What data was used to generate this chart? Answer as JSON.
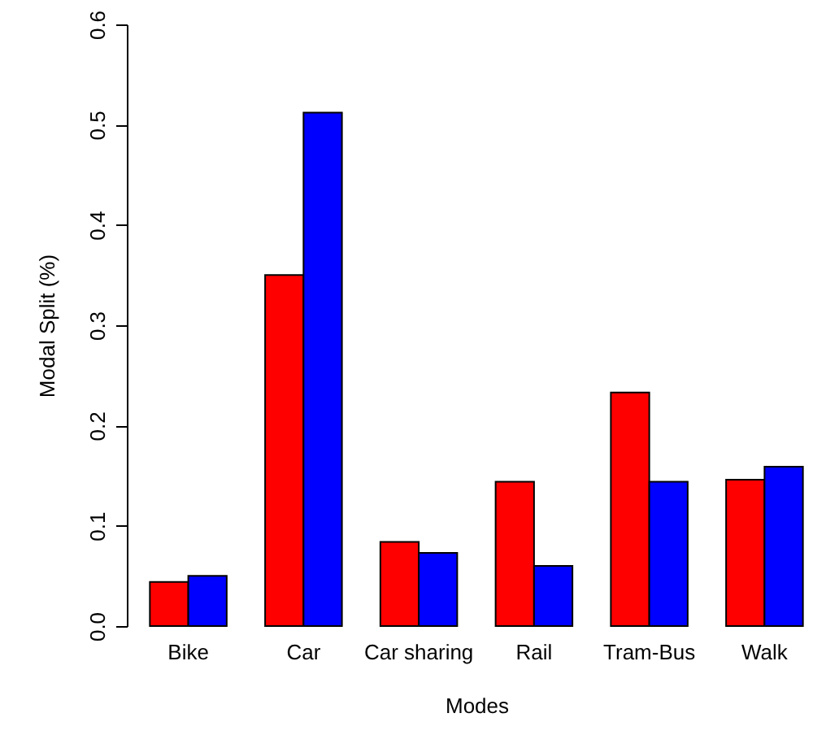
{
  "chart_data": {
    "type": "bar",
    "xlabel": "Modes",
    "ylabel": "Modal Split (%)",
    "categories": [
      "Bike",
      "Car",
      "Car sharing",
      "Rail",
      "Tram-Bus",
      "Walk"
    ],
    "series": [
      {
        "color": "#ff0000",
        "values": [
          0.044,
          0.35,
          0.084,
          0.144,
          0.233,
          0.146
        ]
      },
      {
        "color": "#0000ff",
        "values": [
          0.05,
          0.512,
          0.073,
          0.06,
          0.144,
          0.159
        ]
      }
    ],
    "ylim": [
      0,
      0.6
    ],
    "yticks": [
      {
        "value": 0,
        "label": "0.0"
      },
      {
        "value": 0.1,
        "label": "0.1"
      },
      {
        "value": 0.2,
        "label": "0.2"
      },
      {
        "value": 0.3,
        "label": "0.3"
      },
      {
        "value": 0.4,
        "label": "0.4"
      },
      {
        "value": 0.5,
        "label": "0.5"
      },
      {
        "value": 0.6,
        "label": "0.6"
      }
    ],
    "grid": false
  }
}
